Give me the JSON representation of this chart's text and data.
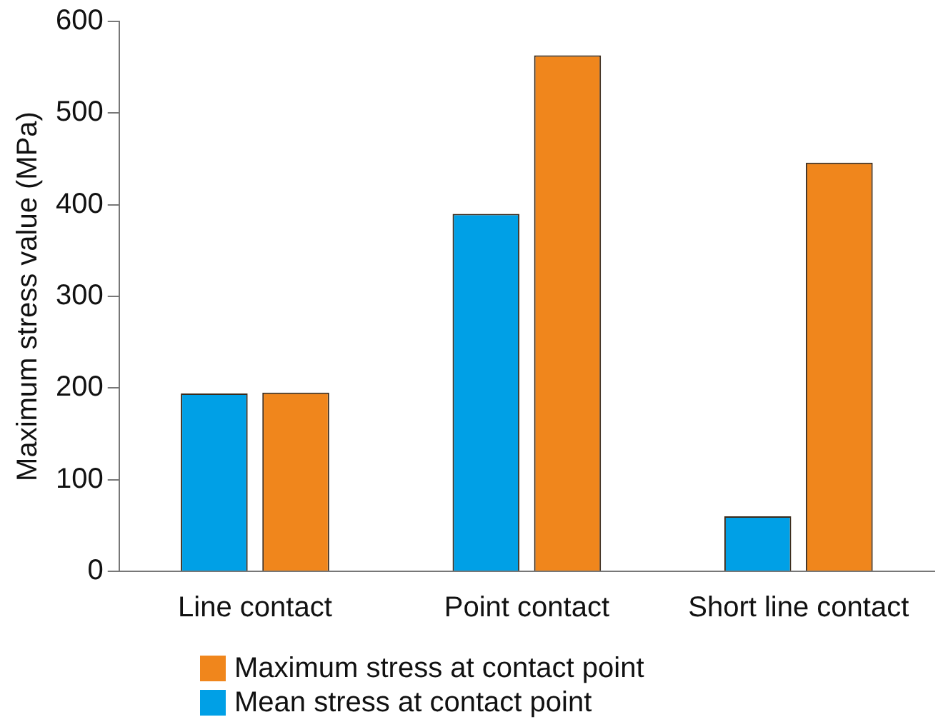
{
  "chart_data": {
    "type": "bar",
    "ylabel": "Maximum stress value (MPa)",
    "categories": [
      "Line contact",
      "Point contact",
      "Short line contact"
    ],
    "series": [
      {
        "name": "Mean stress at contact point",
        "color": "#00a0e6",
        "values": [
          194,
          390,
          60
        ]
      },
      {
        "name": "Maximum stress at contact point",
        "color": "#f0861c",
        "values": [
          195,
          563,
          446
        ]
      }
    ],
    "ylim": [
      0,
      600
    ],
    "yticks": [
      0,
      100,
      200,
      300,
      400,
      500,
      600
    ],
    "grid": false,
    "legend": "bottom"
  }
}
